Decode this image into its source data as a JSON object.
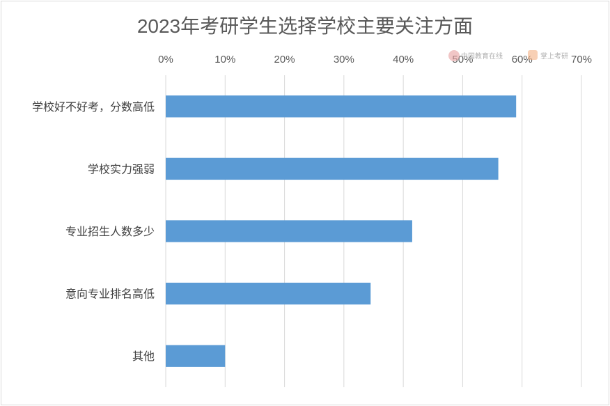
{
  "chart_data": {
    "type": "bar",
    "orientation": "horizontal",
    "title": "2023年考研学生选择学校主要关注方面",
    "categories": [
      "学校好不好考，分数高低",
      "学校实力强弱",
      "专业招生人数多少",
      "意向专业排名高低",
      "其他"
    ],
    "values": [
      59,
      56,
      41.5,
      34.5,
      10
    ],
    "value_unit": "%",
    "xlim": [
      0,
      70
    ],
    "x_ticks": [
      "0%",
      "10%",
      "20%",
      "30%",
      "40%",
      "50%",
      "60%",
      "70%"
    ],
    "x_axis_position": "top",
    "grid": true,
    "legend": "none",
    "colors": {
      "bar": "#5b9bd5",
      "grid": "#d9d9d9",
      "text": "#595959"
    }
  },
  "watermarks": {
    "left_text": "中国教育在线",
    "right_text": "掌上考研"
  }
}
